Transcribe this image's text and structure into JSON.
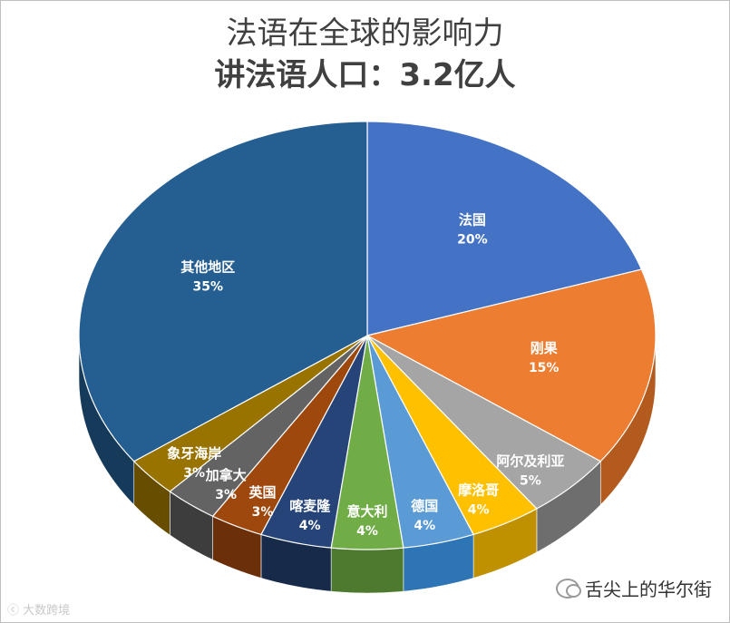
{
  "chart_data": {
    "type": "pie",
    "title": "法语在全球的影响力",
    "subtitle": "讲法语人口：3.2亿人",
    "slices": [
      {
        "label": "法国",
        "value": 20,
        "value_label": "20%",
        "color": "#4472C4",
        "side": "#2f5597"
      },
      {
        "label": "刚果",
        "value": 15,
        "value_label": "15%",
        "color": "#ED7D31",
        "side": "#b35a1f"
      },
      {
        "label": "阿尔及利亚",
        "value": 5,
        "value_label": "5%",
        "color": "#A5A5A5",
        "side": "#6e6e6e"
      },
      {
        "label": "摩洛哥",
        "value": 4,
        "value_label": "4%",
        "color": "#FFC000",
        "side": "#bf9000"
      },
      {
        "label": "德国",
        "value": 4,
        "value_label": "4%",
        "color": "#5B9BD5",
        "side": "#2e75b6"
      },
      {
        "label": "意大利",
        "value": 4,
        "value_label": "4%",
        "color": "#70AD47",
        "side": "#4e7a30"
      },
      {
        "label": "喀麦隆",
        "value": 4,
        "value_label": "4%",
        "color": "#264478",
        "side": "#172a4a"
      },
      {
        "label": "英国",
        "value": 3,
        "value_label": "3%",
        "color": "#9E480E",
        "side": "#6b3009"
      },
      {
        "label": "加拿大",
        "value": 3,
        "value_label": "3%",
        "color": "#636363",
        "side": "#3d3d3d"
      },
      {
        "label": "象牙海岸",
        "value": 3,
        "value_label": "3%",
        "color": "#997300",
        "side": "#664d00"
      },
      {
        "label": "其他地区",
        "value": 35,
        "value_label": "35%",
        "color": "#255E91",
        "side": "#163a5a"
      }
    ]
  },
  "watermarks": {
    "left": "ⓒ 大数跨境",
    "right": "舌尖上的华尔街"
  }
}
